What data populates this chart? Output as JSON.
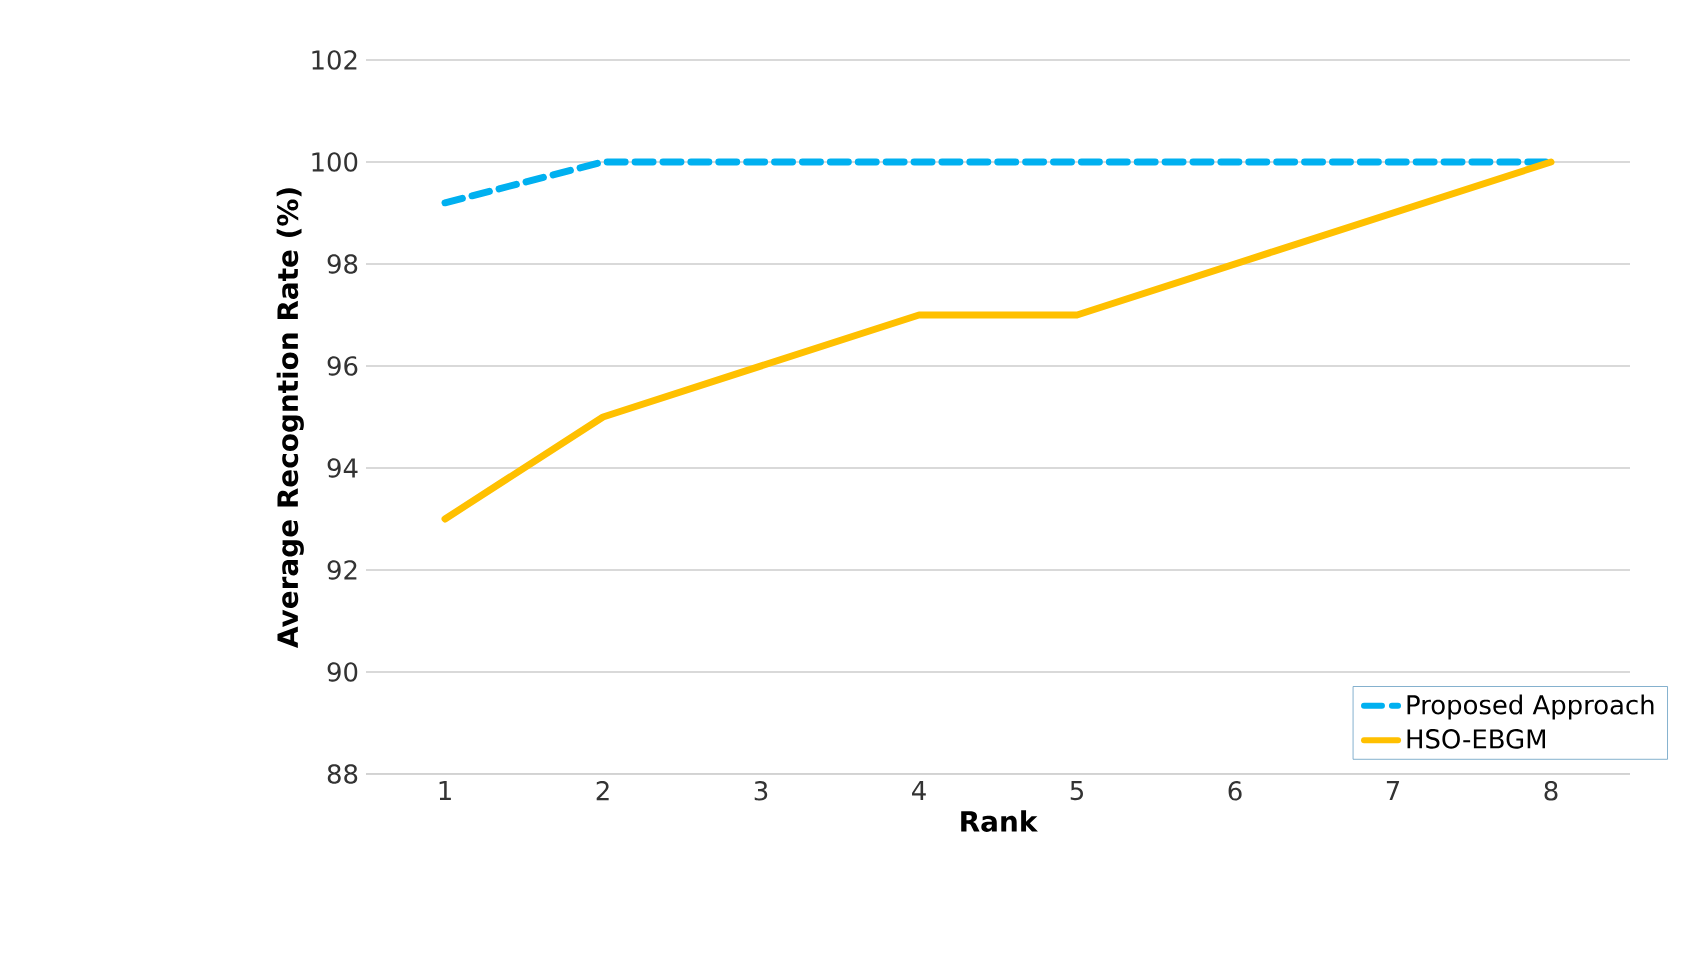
{
  "chart_data": {
    "type": "line",
    "xlabel": "Rank",
    "ylabel": "Average Recogntion Rate (%)",
    "categories": [
      "1",
      "2",
      "3",
      "4",
      "5",
      "6",
      "7",
      "8"
    ],
    "series": [
      {
        "name": "Proposed Approach",
        "color": "#00b0f0",
        "line_style": "dashed",
        "values": [
          99.2,
          100,
          100,
          100,
          100,
          100,
          100,
          100
        ]
      },
      {
        "name": "HSO-EBGM",
        "color": "#ffc000",
        "line_style": "solid",
        "values": [
          93,
          95,
          96,
          97,
          97,
          98,
          99,
          100
        ]
      }
    ],
    "ylim": [
      88,
      102
    ],
    "yticks": [
      88,
      90,
      92,
      94,
      96,
      98,
      100,
      102
    ],
    "grid": "y",
    "legend": "bottom right",
    "marker": "none"
  }
}
